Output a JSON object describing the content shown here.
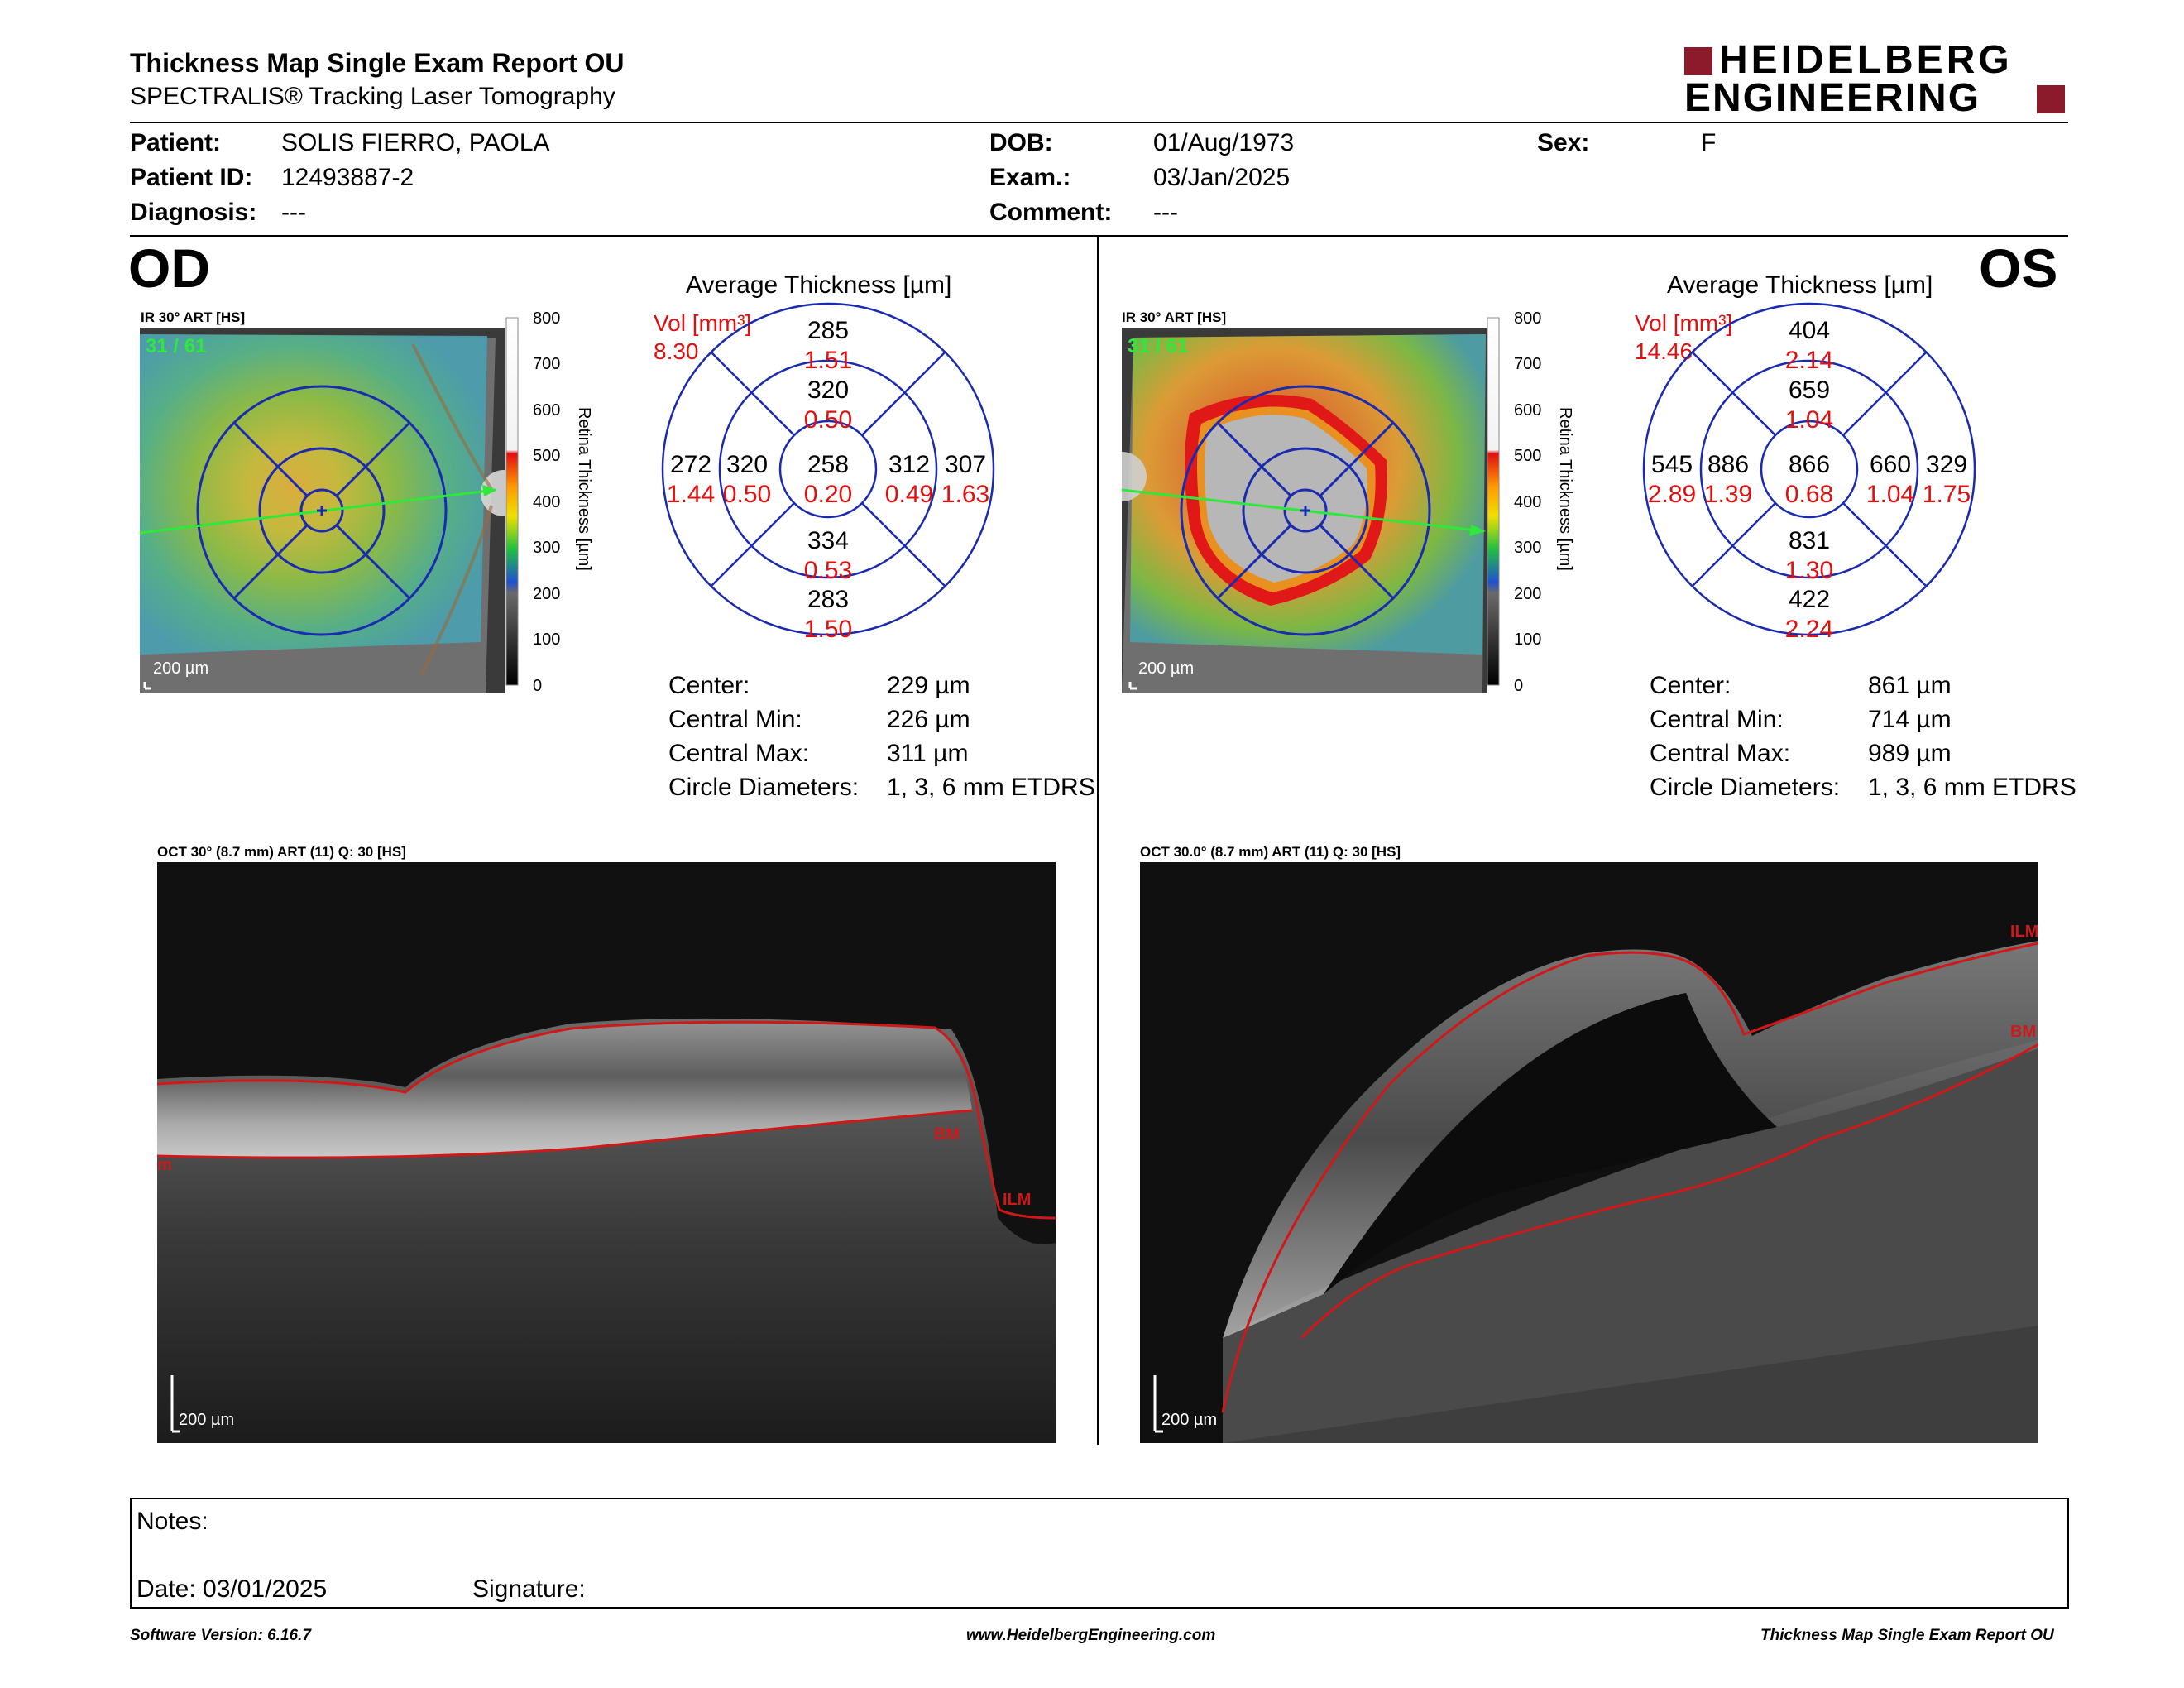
{
  "header": {
    "title": "Thickness Map Single Exam Report OU",
    "subtitle": "SPECTRALIS® Tracking Laser Tomography",
    "logo_line1": "HEIDELBERG",
    "logo_line2": "ENGINEERING",
    "brand_color": "#8b1a2b"
  },
  "patient": {
    "patient_label": "Patient:",
    "patient": "SOLIS FIERRO, PAOLA",
    "id_label": "Patient ID:",
    "id": "12493887-2",
    "diagnosis_label": "Diagnosis:",
    "diagnosis": "---",
    "dob_label": "DOB:",
    "dob": "01/Aug/1973",
    "exam_label": "Exam.:",
    "exam": "03/Jan/2025",
    "comment_label": "Comment:",
    "comment": "---",
    "sex_label": "Sex:",
    "sex": "F"
  },
  "od": {
    "eye": "OD",
    "ir_label": "IR 30° ART [HS]",
    "frame": "31 / 61",
    "scale": "200 µm",
    "colorbar_ticks": [
      "800",
      "700",
      "600",
      "500",
      "400",
      "300",
      "200",
      "100",
      "0"
    ],
    "colorbar_title": "Retina Thickness [µm]",
    "avg_title": "Average Thickness [µm]",
    "vol_label": "Vol [mm³]",
    "vol": "8.30",
    "grid": {
      "center_t": "258",
      "center_v": "0.20",
      "inner_top_t": "320",
      "inner_top_v": "0.50",
      "inner_bottom_t": "334",
      "inner_bottom_v": "0.53",
      "inner_left_t": "320",
      "inner_left_v": "0.50",
      "inner_right_t": "312",
      "inner_right_v": "0.49",
      "outer_top_t": "285",
      "outer_top_v": "1.51",
      "outer_bottom_t": "283",
      "outer_bottom_v": "1.50",
      "outer_left_t": "272",
      "outer_left_v": "1.44",
      "outer_right_t": "307",
      "outer_right_v": "1.63"
    },
    "stats": {
      "center_label": "Center:",
      "center": "229 µm",
      "min_label": "Central Min:",
      "min": "226 µm",
      "max_label": "Central Max:",
      "max": "311 µm",
      "diam_label": "Circle Diameters:",
      "diam": "1, 3, 6 mm ETDRS"
    },
    "oct_label": "OCT 30° (8.7 mm) ART (11) Q: 30 [HS]",
    "oct_scale": "200 µm",
    "bm": "BM",
    "ilm": "ILM",
    "edge": "m"
  },
  "os": {
    "eye": "OS",
    "ir_label": "IR 30° ART [HS]",
    "frame": "31 / 61",
    "scale": "200 µm",
    "colorbar_ticks": [
      "800",
      "700",
      "600",
      "500",
      "400",
      "300",
      "200",
      "100",
      "0"
    ],
    "colorbar_title": "Retina Thickness [µm]",
    "avg_title": "Average Thickness [µm]",
    "vol_label": "Vol [mm³]",
    "vol": "14.46",
    "grid": {
      "center_t": "866",
      "center_v": "0.68",
      "inner_top_t": "659",
      "inner_top_v": "1.04",
      "inner_bottom_t": "831",
      "inner_bottom_v": "1.30",
      "inner_left_t": "886",
      "inner_left_v": "1.39",
      "inner_right_t": "660",
      "inner_right_v": "1.04",
      "outer_top_t": "404",
      "outer_top_v": "2.14",
      "outer_bottom_t": "422",
      "outer_bottom_v": "2.24",
      "outer_left_t": "545",
      "outer_left_v": "2.89",
      "outer_right_t": "329",
      "outer_right_v": "1.75"
    },
    "stats": {
      "center_label": "Center:",
      "center": "861 µm",
      "min_label": "Central Min:",
      "min": "714 µm",
      "max_label": "Central Max:",
      "max": "989 µm",
      "diam_label": "Circle Diameters:",
      "diam": "1, 3, 6 mm ETDRS"
    },
    "oct_label": "OCT 30.0° (8.7 mm) ART (11) Q: 30 [HS]",
    "oct_scale": "200 µm",
    "bm": "BM",
    "ilm": "ILM"
  },
  "notes": {
    "notes_label": "Notes:",
    "date_label": "Date: 03/01/2025",
    "signature_label": "Signature:"
  },
  "footer": {
    "version": "Software Version: 6.16.7",
    "url": "www.HeidelbergEngineering.com",
    "report": "Thickness Map Single Exam Report OU"
  }
}
